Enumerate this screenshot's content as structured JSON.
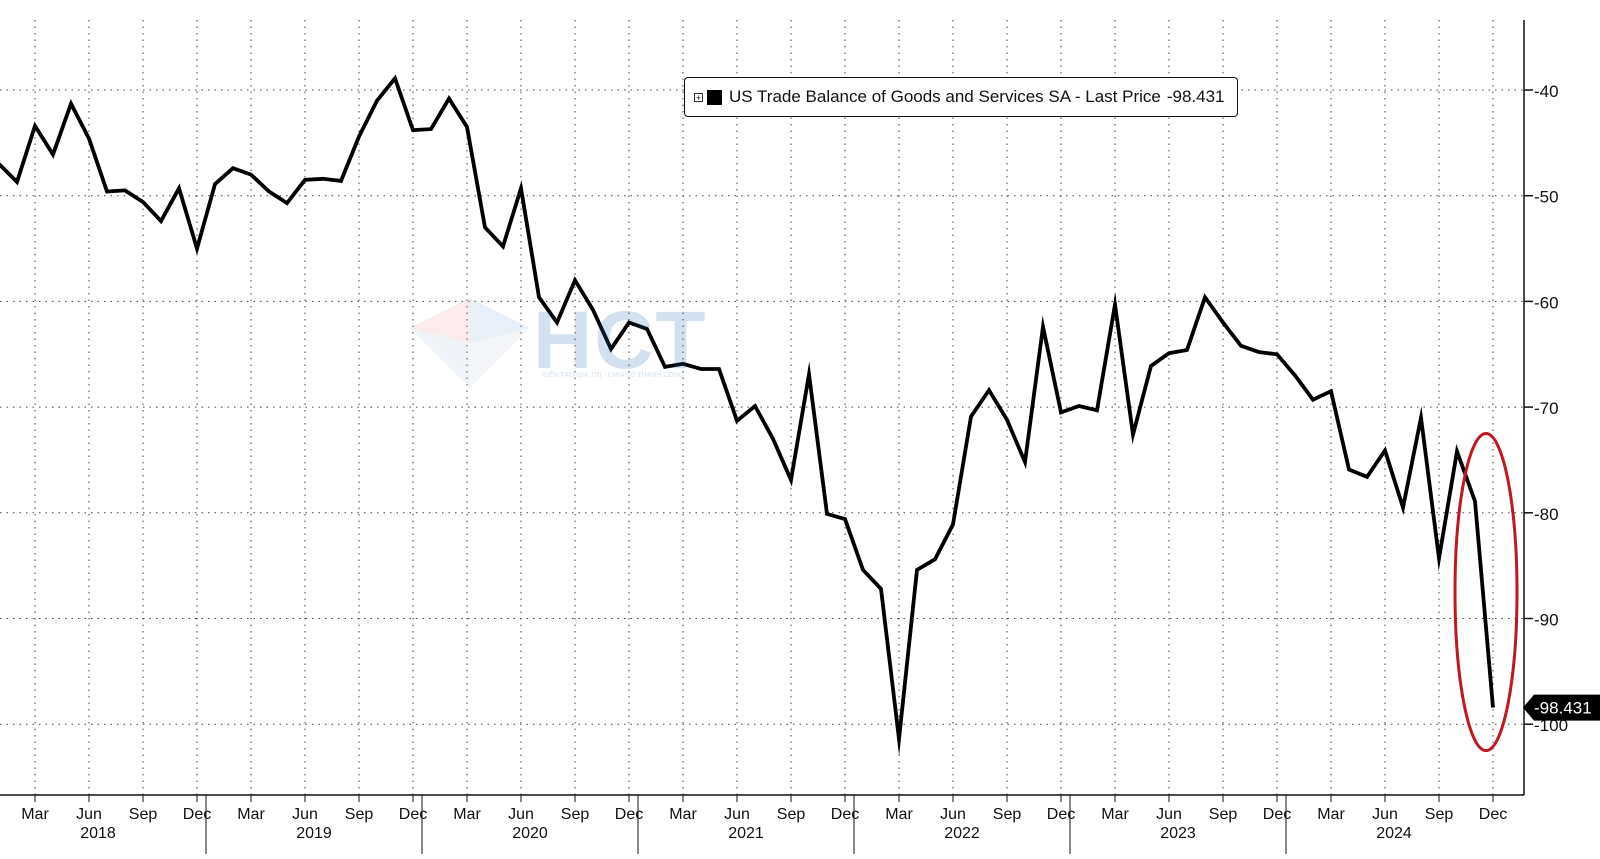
{
  "chart_data": {
    "type": "line",
    "title": "",
    "xlabel": "",
    "ylabel": "",
    "legend": {
      "label": "US Trade Balance of Goods and Services SA - Last Price",
      "last_price": "-98.431",
      "swatch_color": "#000000",
      "placement": "top-center"
    },
    "last_value_tag": "-98.431",
    "ylim": [
      -105,
      -33
    ],
    "y_ticks": [
      -40,
      -50,
      -60,
      -70,
      -80,
      -90,
      -100
    ],
    "y_tick_labels": [
      "-40",
      "-50",
      "-60",
      "-70",
      "-80",
      "-90",
      "-100"
    ],
    "x_month_ticks": [
      "Mar",
      "Jun",
      "Sep",
      "Dec",
      "Mar",
      "Jun",
      "Sep",
      "Dec",
      "Mar",
      "Jun",
      "Sep",
      "Dec",
      "Mar",
      "Jun",
      "Sep",
      "Dec",
      "Mar",
      "Jun",
      "Sep",
      "Dec",
      "Mar",
      "Jun",
      "Sep",
      "Dec",
      "Mar",
      "Jun",
      "Sep",
      "Dec"
    ],
    "x_year_labels": [
      "2018",
      "2019",
      "2020",
      "2021",
      "2022",
      "2023",
      "2024"
    ],
    "start_month": "2018-01",
    "line_color": "#000000",
    "grid": true,
    "series": [
      {
        "values": [
          -47.0,
          -48.7,
          -43.4,
          -46.1,
          -41.3,
          -44.6,
          -49.6,
          -49.5,
          -50.6,
          -52.4,
          -49.3,
          -55.0,
          -48.9,
          -47.4,
          -48.0,
          -49.6,
          -50.7,
          -48.5,
          -48.4,
          -48.6,
          -44.4,
          -41.0,
          -38.9,
          -43.8,
          -43.7,
          -40.8,
          -43.5,
          -53.0,
          -54.8,
          -49.3,
          -59.6,
          -62.0,
          -58.0,
          -60.8,
          -64.5,
          -62.0,
          -62.6,
          -66.2,
          -65.9,
          -66.4,
          -66.4,
          -71.3,
          -69.9,
          -73.0,
          -76.9,
          -66.9,
          -80.1,
          -80.6,
          -85.4,
          -87.2,
          -101.4,
          -85.4,
          -84.4,
          -81.1,
          -70.9,
          -68.4,
          -71.2,
          -75.2,
          -62.4,
          -70.5,
          -69.9,
          -70.3,
          -60.3,
          -72.6,
          -66.1,
          -64.9,
          -64.6,
          -59.6,
          -62.0,
          -64.2,
          -64.8,
          -65.0,
          -67.0,
          -69.3,
          -68.5,
          -75.9,
          -76.6,
          -74.1,
          -79.5,
          -71.0,
          -84.3,
          -74.2,
          -78.9,
          -98.431
        ]
      }
    ],
    "highlight": {
      "type": "ellipse",
      "color": "#c0181d",
      "around": "last two observations"
    }
  },
  "watermark": {
    "text": "HCT",
    "tagline": "KIẾN TẠO GIÁ TRỊ - CHIA SẺ THÀNH CÔNG"
  }
}
